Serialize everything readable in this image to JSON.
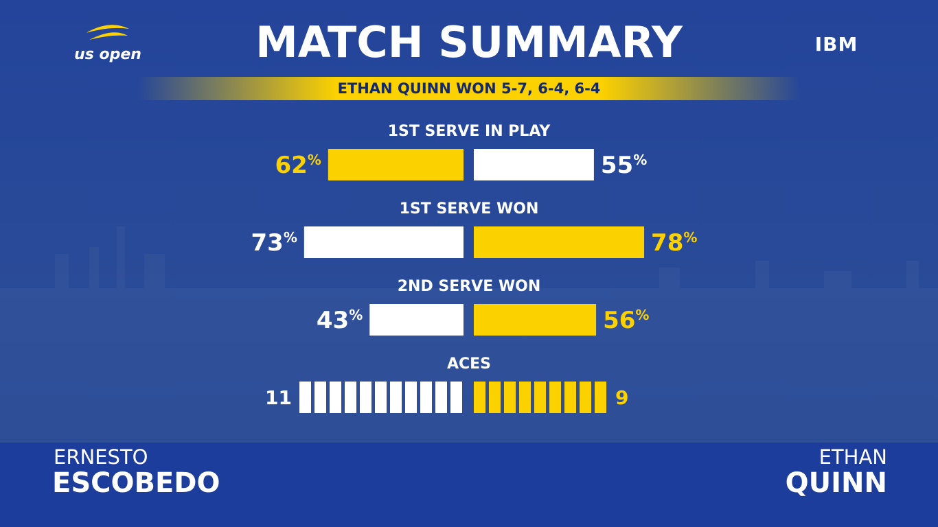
{
  "logo": "us open",
  "sponsor": "IBM",
  "title": "MATCH SUMMARY",
  "result": "ETHAN QUINN WON 5-7, 6-4, 6-4",
  "stats": [
    {
      "label": "1ST SERVE IN PLAY",
      "left": {
        "value": 62,
        "value_label": "62%",
        "color": "#fcd100"
      },
      "right": {
        "value": 55,
        "value_label": "55%",
        "color": "#ffffff"
      }
    },
    {
      "label": "1ST SERVE WON",
      "left": {
        "value": 73,
        "value_label": "73%",
        "color": "#ffffff"
      },
      "right": {
        "value": 78,
        "value_label": "78%",
        "color": "#fcd100"
      }
    },
    {
      "label": "2ND SERVE WON",
      "left": {
        "value": 43,
        "value_label": "43%",
        "color": "#ffffff"
      },
      "right": {
        "value": 56,
        "value_label": "56%",
        "color": "#fcd100"
      }
    },
    {
      "label": "ACES",
      "left": {
        "value": 11,
        "color": "#ffffff"
      },
      "right": {
        "value": 9,
        "color": "#fcd100"
      }
    }
  ],
  "players": {
    "left": {
      "first": "ERNESTO",
      "last": "ESCOBEDO"
    },
    "right": {
      "first": "ETHAN",
      "last": "QUINN"
    }
  }
}
